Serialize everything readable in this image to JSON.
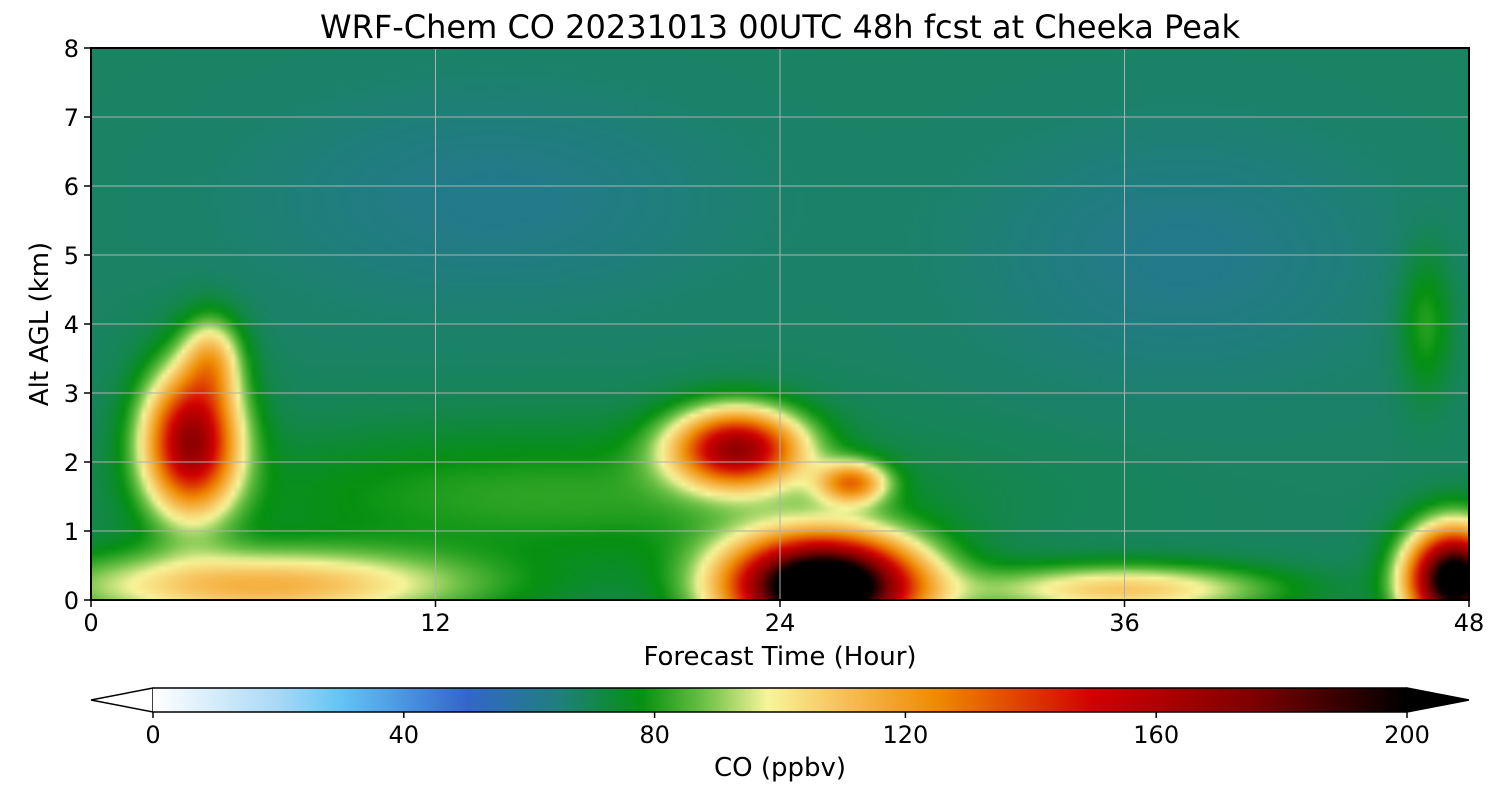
{
  "chart_data": {
    "type": "heatmap",
    "title": "WRF-Chem CO  20231013 00UTC 48h fcst at Cheeka Peak",
    "xlabel": "Forecast Time (Hour)",
    "ylabel": "Alt AGL (km)",
    "xlim": [
      0,
      48
    ],
    "ylim": [
      0,
      8
    ],
    "xticks": [
      0,
      12,
      24,
      36,
      48
    ],
    "yticks": [
      0,
      1,
      2,
      3,
      4,
      5,
      6,
      7,
      8
    ],
    "grid": true,
    "colorbar": {
      "label": "CO  (ppbv)",
      "min": 0,
      "max": 200,
      "ticks": [
        0,
        40,
        80,
        120,
        160,
        200
      ],
      "extend": "both",
      "stops": [
        {
          "value": 0,
          "color": "#ffffff"
        },
        {
          "value": 20,
          "color": "#a9d8f5"
        },
        {
          "value": 30,
          "color": "#63c4f5"
        },
        {
          "value": 50,
          "color": "#3366cc"
        },
        {
          "value": 65,
          "color": "#1f7f7a"
        },
        {
          "value": 78,
          "color": "#059110"
        },
        {
          "value": 88,
          "color": "#6dc146"
        },
        {
          "value": 98,
          "color": "#f7f59a"
        },
        {
          "value": 110,
          "color": "#f7c05a"
        },
        {
          "value": 125,
          "color": "#ef8a00"
        },
        {
          "value": 150,
          "color": "#d10000"
        },
        {
          "value": 175,
          "color": "#800000"
        },
        {
          "value": 200,
          "color": "#000000"
        }
      ]
    },
    "background_value": 68,
    "features": [
      {
        "name": "plume-early",
        "x": 3.5,
        "y": 2.3,
        "sx": 1.6,
        "sy": 1.0,
        "amp": 100
      },
      {
        "name": "plume-early-top",
        "x": 4.2,
        "y": 3.5,
        "sx": 1.0,
        "sy": 0.6,
        "amp": 35
      },
      {
        "name": "plume-mid",
        "x": 22.5,
        "y": 2.2,
        "sx": 2.2,
        "sy": 0.55,
        "amp": 95
      },
      {
        "name": "plume-mid-tail",
        "x": 26.5,
        "y": 1.7,
        "sx": 1.2,
        "sy": 0.3,
        "amp": 55
      },
      {
        "name": "surface-max",
        "x": 25.5,
        "y": 0.2,
        "sx": 3.2,
        "sy": 0.7,
        "amp": 170
      },
      {
        "name": "surface-early",
        "x": 6.0,
        "y": 0.2,
        "sx": 7.0,
        "sy": 0.5,
        "amp": 45
      },
      {
        "name": "surface-late",
        "x": 36.0,
        "y": 0.15,
        "sx": 5.0,
        "sy": 0.35,
        "amp": 40
      },
      {
        "name": "surface-end",
        "x": 47.5,
        "y": 0.3,
        "sx": 1.6,
        "sy": 0.7,
        "amp": 150
      },
      {
        "name": "green-band",
        "x": 16.0,
        "y": 1.5,
        "sx": 12.0,
        "sy": 1.0,
        "amp": 14
      },
      {
        "name": "upper-teal",
        "x": 14.0,
        "y": 5.8,
        "sx": 8.0,
        "sy": 1.5,
        "amp": -6
      },
      {
        "name": "upper-teal-late",
        "x": 38.0,
        "y": 5.0,
        "sx": 7.0,
        "sy": 1.8,
        "amp": -6
      },
      {
        "name": "ridge-late",
        "x": 46.5,
        "y": 4.0,
        "sx": 0.9,
        "sy": 1.0,
        "amp": 14
      }
    ]
  }
}
